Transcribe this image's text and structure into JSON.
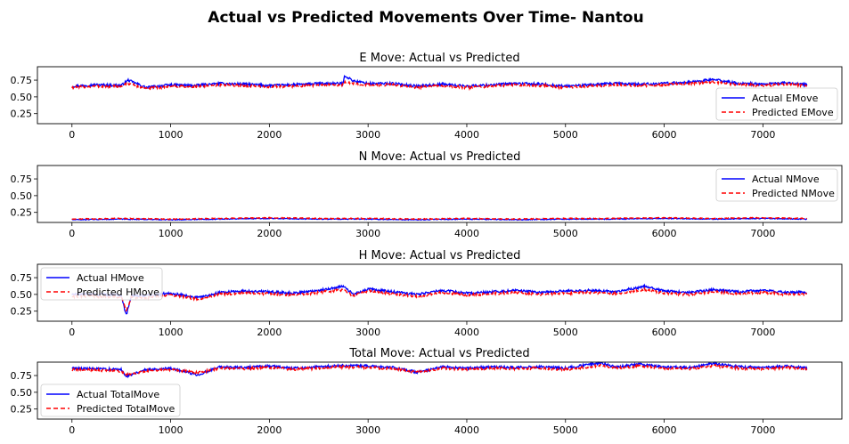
{
  "figure": {
    "title": "Actual vs Predicted Movements Over Time- Nantou"
  },
  "colors": {
    "actual": "#0000ff",
    "predicted": "#ff0000"
  },
  "chart_data": [
    {
      "type": "line",
      "title": "E Move: Actual vs Predicted",
      "xlabel": "",
      "ylabel": "",
      "xlim": [
        -350,
        7800
      ],
      "ylim": [
        0.1,
        0.95
      ],
      "xticks": [
        0,
        1000,
        2000,
        3000,
        4000,
        5000,
        6000,
        7000
      ],
      "xtick_labels": [
        "0",
        "1000",
        "2000",
        "3000",
        "4000",
        "5000",
        "6000",
        "7000"
      ],
      "yticks": [
        0.25,
        0.5,
        0.75
      ],
      "ytick_labels": [
        "0.25",
        "0.50",
        "0.75"
      ],
      "legend_location": "lower right",
      "grid": false,
      "x": [
        0,
        250,
        500,
        570,
        750,
        1000,
        1250,
        1500,
        1750,
        2000,
        2250,
        2500,
        2750,
        2760,
        2850,
        3000,
        3250,
        3500,
        3750,
        4000,
        4250,
        4500,
        4750,
        5000,
        5250,
        5500,
        5750,
        6000,
        6250,
        6500,
        6750,
        7000,
        7250,
        7450
      ],
      "series": [
        {
          "name": "Actual EMove",
          "style": "solid",
          "values": [
            0.66,
            0.68,
            0.67,
            0.75,
            0.64,
            0.68,
            0.67,
            0.7,
            0.69,
            0.67,
            0.68,
            0.7,
            0.7,
            0.82,
            0.74,
            0.7,
            0.7,
            0.66,
            0.69,
            0.66,
            0.68,
            0.7,
            0.69,
            0.66,
            0.68,
            0.7,
            0.69,
            0.7,
            0.72,
            0.76,
            0.7,
            0.69,
            0.71,
            0.68
          ]
        },
        {
          "name": "Predicted EMove",
          "style": "dashed",
          "values": [
            0.64,
            0.66,
            0.65,
            0.7,
            0.62,
            0.66,
            0.65,
            0.68,
            0.67,
            0.65,
            0.66,
            0.68,
            0.68,
            0.72,
            0.7,
            0.68,
            0.68,
            0.64,
            0.67,
            0.64,
            0.66,
            0.68,
            0.67,
            0.64,
            0.66,
            0.68,
            0.67,
            0.68,
            0.7,
            0.72,
            0.68,
            0.67,
            0.69,
            0.66
          ]
        }
      ]
    },
    {
      "type": "line",
      "title": "N Move: Actual vs Predicted",
      "xlabel": "",
      "ylabel": "",
      "xlim": [
        -350,
        7800
      ],
      "ylim": [
        0.1,
        0.95
      ],
      "xticks": [
        0,
        1000,
        2000,
        3000,
        4000,
        5000,
        6000,
        7000
      ],
      "xtick_labels": [
        "0",
        "1000",
        "2000",
        "3000",
        "4000",
        "5000",
        "6000",
        "7000"
      ],
      "yticks": [
        0.25,
        0.5,
        0.75
      ],
      "ytick_labels": [
        "0.25",
        "0.50",
        "0.75"
      ],
      "legend_location": "upper right",
      "grid": false,
      "x": [
        0,
        500,
        1000,
        1500,
        2000,
        2500,
        3000,
        3500,
        4000,
        4500,
        5000,
        5500,
        6000,
        6500,
        7000,
        7450
      ],
      "series": [
        {
          "name": "Actual NMove",
          "style": "solid",
          "values": [
            0.14,
            0.15,
            0.14,
            0.15,
            0.16,
            0.15,
            0.15,
            0.14,
            0.15,
            0.14,
            0.15,
            0.15,
            0.16,
            0.15,
            0.16,
            0.15
          ]
        },
        {
          "name": "Predicted NMove",
          "style": "dashed",
          "values": [
            0.15,
            0.16,
            0.15,
            0.16,
            0.17,
            0.16,
            0.16,
            0.15,
            0.16,
            0.15,
            0.16,
            0.16,
            0.17,
            0.16,
            0.17,
            0.16
          ]
        }
      ]
    },
    {
      "type": "line",
      "title": "H Move: Actual vs Predicted",
      "xlabel": "",
      "ylabel": "",
      "xlim": [
        -350,
        7800
      ],
      "ylim": [
        0.1,
        0.95
      ],
      "xticks": [
        0,
        1000,
        2000,
        3000,
        4000,
        5000,
        6000,
        7000
      ],
      "xtick_labels": [
        "0",
        "1000",
        "2000",
        "3000",
        "4000",
        "5000",
        "6000",
        "7000"
      ],
      "yticks": [
        0.25,
        0.5,
        0.75
      ],
      "ytick_labels": [
        "0.25",
        "0.50",
        "0.75"
      ],
      "legend_location": "upper left",
      "grid": false,
      "x": [
        0,
        300,
        500,
        550,
        600,
        750,
        1000,
        1280,
        1500,
        1750,
        2000,
        2250,
        2500,
        2750,
        2850,
        3000,
        3250,
        3500,
        3750,
        4000,
        4250,
        4500,
        4750,
        5000,
        5250,
        5500,
        5800,
        6000,
        6250,
        6500,
        6750,
        7000,
        7250,
        7450
      ],
      "series": [
        {
          "name": "Actual HMove",
          "style": "solid",
          "values": [
            0.5,
            0.5,
            0.49,
            0.18,
            0.48,
            0.48,
            0.52,
            0.45,
            0.53,
            0.55,
            0.54,
            0.52,
            0.56,
            0.62,
            0.5,
            0.58,
            0.54,
            0.5,
            0.56,
            0.52,
            0.54,
            0.56,
            0.53,
            0.55,
            0.56,
            0.54,
            0.62,
            0.55,
            0.53,
            0.57,
            0.54,
            0.56,
            0.53,
            0.53
          ]
        },
        {
          "name": "Predicted HMove",
          "style": "dashed",
          "values": [
            0.47,
            0.47,
            0.46,
            0.25,
            0.45,
            0.45,
            0.49,
            0.43,
            0.5,
            0.52,
            0.51,
            0.49,
            0.53,
            0.57,
            0.48,
            0.55,
            0.51,
            0.47,
            0.53,
            0.49,
            0.51,
            0.53,
            0.5,
            0.52,
            0.53,
            0.51,
            0.57,
            0.52,
            0.5,
            0.54,
            0.51,
            0.53,
            0.5,
            0.5
          ]
        }
      ]
    },
    {
      "type": "line",
      "title": "Total Move: Actual vs Predicted",
      "xlabel": "",
      "ylabel": "",
      "xlim": [
        -350,
        7800
      ],
      "ylim": [
        0.1,
        0.95
      ],
      "xticks": [
        0,
        1000,
        2000,
        3000,
        4000,
        5000,
        6000,
        7000
      ],
      "xtick_labels": [
        "0",
        "1000",
        "2000",
        "3000",
        "4000",
        "5000",
        "6000",
        "7000"
      ],
      "yticks": [
        0.25,
        0.5,
        0.75
      ],
      "ytick_labels": [
        "0.25",
        "0.50",
        "0.75"
      ],
      "legend_location": "lower left",
      "grid": false,
      "x": [
        0,
        250,
        500,
        550,
        750,
        1000,
        1270,
        1500,
        1750,
        2000,
        2250,
        2500,
        2750,
        3000,
        3250,
        3500,
        3750,
        4000,
        4250,
        4500,
        4750,
        5000,
        5350,
        5500,
        5750,
        6000,
        6250,
        6500,
        6750,
        7000,
        7250,
        7450
      ],
      "series": [
        {
          "name": "Actual TotalMove",
          "style": "solid",
          "values": [
            0.86,
            0.85,
            0.84,
            0.74,
            0.84,
            0.86,
            0.76,
            0.88,
            0.87,
            0.89,
            0.86,
            0.88,
            0.9,
            0.89,
            0.87,
            0.8,
            0.88,
            0.86,
            0.88,
            0.87,
            0.88,
            0.86,
            0.94,
            0.88,
            0.92,
            0.88,
            0.87,
            0.93,
            0.88,
            0.87,
            0.89,
            0.86
          ]
        },
        {
          "name": "Predicted TotalMove",
          "style": "dashed",
          "values": [
            0.84,
            0.83,
            0.82,
            0.76,
            0.82,
            0.84,
            0.79,
            0.86,
            0.85,
            0.87,
            0.84,
            0.86,
            0.88,
            0.87,
            0.85,
            0.8,
            0.86,
            0.84,
            0.86,
            0.85,
            0.86,
            0.84,
            0.9,
            0.86,
            0.89,
            0.86,
            0.85,
            0.9,
            0.86,
            0.85,
            0.87,
            0.84
          ]
        }
      ]
    }
  ]
}
